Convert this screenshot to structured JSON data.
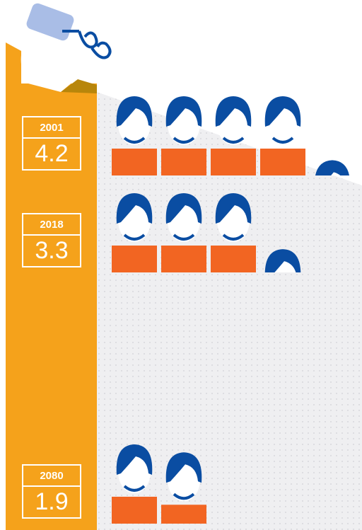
{
  "chart_data": {
    "type": "pictogram",
    "categories": [
      "2001",
      "2018",
      "2080"
    ],
    "values": [
      4.2,
      3.3,
      1.9
    ],
    "color": "#f26522",
    "icon_color": "#0a4da2",
    "bar_color": "#f5a21b"
  }
}
